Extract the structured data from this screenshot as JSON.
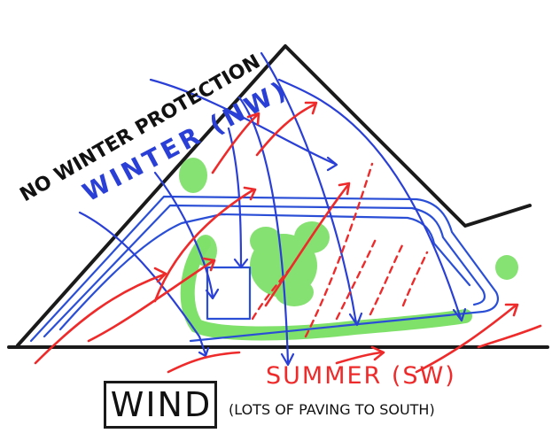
{
  "labels": {
    "no_winter_protection": "NO WINTER PROTECTION",
    "winter": "WINTER (NW)",
    "summer": "SUMMER (SW)",
    "wind": "WIND",
    "paving_note": "(LOTS OF PAVING TO SOUTH)"
  },
  "colors": {
    "ink": "#1a1a1a",
    "winter_wind": "#2a3fd6",
    "summer_wind": "#ee2a2a",
    "vegetation": "#7fe06a",
    "path": "#2a4fd6"
  }
}
